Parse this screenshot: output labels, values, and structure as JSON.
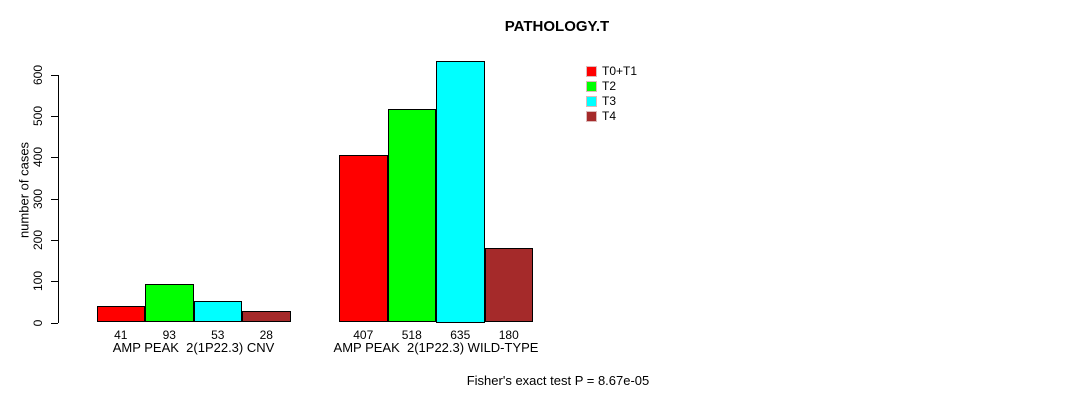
{
  "title": "PATHOLOGY.T",
  "annotation": "Fisher's exact test P = 8.67e-05",
  "y_axis": {
    "label": "number of cases"
  },
  "legend": {
    "items": [
      {
        "label": "T0+T1",
        "color": "#FF0000"
      },
      {
        "label": "T2",
        "color": "#00FF00"
      },
      {
        "label": "T3",
        "color": "#00FFFF"
      },
      {
        "label": "T4",
        "color": "#A52A2A"
      }
    ]
  },
  "chart_data": {
    "type": "bar",
    "title": "PATHOLOGY.T",
    "ylabel": "number of cases",
    "xlabel": "",
    "categories": [
      "AMP PEAK  2(1P22.3) CNV",
      "AMP PEAK  2(1P22.3) WILD-TYPE"
    ],
    "series": [
      {
        "name": "T0+T1",
        "color": "#FF0000",
        "values": [
          41,
          407
        ]
      },
      {
        "name": "T2",
        "color": "#00FF00",
        "values": [
          93,
          518
        ]
      },
      {
        "name": "T3",
        "color": "#00FFFF",
        "values": [
          53,
          635
        ]
      },
      {
        "name": "T4",
        "color": "#A52A2A",
        "values": [
          28,
          180
        ]
      }
    ],
    "bar_value_labels": [
      [
        41,
        93,
        53,
        28
      ],
      [
        407,
        518,
        635,
        180
      ]
    ],
    "yticks": [
      0,
      100,
      200,
      300,
      400,
      500,
      600
    ],
    "ylim": [
      0,
      635
    ],
    "grid": false,
    "legend_position": "top-right-outside-plot",
    "annotation": "Fisher's exact test P = 8.67e-05"
  }
}
